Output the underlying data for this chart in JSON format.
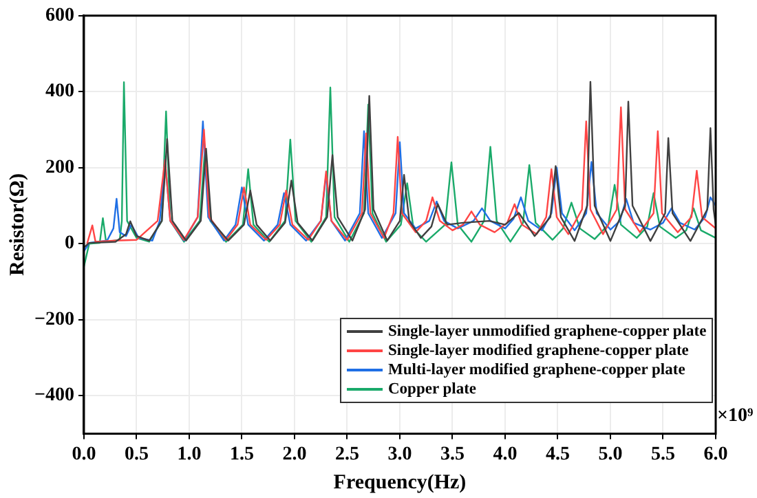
{
  "chart_data": {
    "type": "line",
    "xlabel": "Frequency(Hz)",
    "ylabel": "Resistor(Ω)",
    "annotations": [
      "×10⁹"
    ],
    "xlim": [
      0,
      6
    ],
    "xticks": [
      {
        "value": 0,
        "label": "0.0"
      },
      {
        "value": 0.5,
        "label": "0.5"
      },
      {
        "value": 1,
        "label": "1.0"
      },
      {
        "value": 1.5,
        "label": "1.5"
      },
      {
        "value": 2,
        "label": "2.0"
      },
      {
        "value": 2.5,
        "label": "2.5"
      },
      {
        "value": 3,
        "label": "3.0"
      },
      {
        "value": 3.5,
        "label": "3.5"
      },
      {
        "value": 4,
        "label": "4.0"
      },
      {
        "value": 4.5,
        "label": "4.5"
      },
      {
        "value": 5,
        "label": "5.0"
      },
      {
        "value": 5.5,
        "label": "5.5"
      },
      {
        "value": 6,
        "label": "6.0"
      }
    ],
    "ylim": [
      -500,
      600
    ],
    "yticks": [
      {
        "value": -400,
        "label": "−400"
      },
      {
        "value": -200,
        "label": "−200"
      },
      0,
      200,
      400,
      600
    ],
    "grid": true,
    "legend": "bottom right",
    "marker": "none",
    "line_style": "solid",
    "series": [
      {
        "name": "Single-layer unmodified graphene-copper plate",
        "color": "#404040",
        "x": [
          0,
          0.05,
          0.3,
          0.4,
          0.44,
          0.5,
          0.62,
          0.74,
          0.79,
          0.84,
          0.97,
          1.11,
          1.16,
          1.21,
          1.37,
          1.52,
          1.58,
          1.64,
          1.77,
          1.91,
          1.97,
          2.03,
          2.17,
          2.31,
          2.36,
          2.41,
          2.55,
          2.67,
          2.71,
          2.75,
          2.88,
          3.0,
          3.04,
          3.09,
          3.2,
          3.3,
          3.36,
          3.45,
          3.6,
          3.85,
          4.0,
          4.13,
          4.28,
          4.43,
          4.48,
          4.53,
          4.66,
          4.78,
          4.81,
          4.85,
          5.0,
          5.14,
          5.17,
          5.21,
          5.38,
          5.52,
          5.55,
          5.59,
          5.76,
          5.92,
          5.95,
          5.98,
          6.0
        ],
        "values": [
          -10,
          2,
          5,
          25,
          59,
          20,
          8,
          60,
          275,
          60,
          8,
          60,
          250,
          60,
          8,
          50,
          140,
          50,
          8,
          55,
          166,
          55,
          8,
          70,
          233,
          70,
          8,
          90,
          389,
          90,
          8,
          60,
          181,
          60,
          15,
          45,
          104,
          50,
          55,
          60,
          50,
          81,
          20,
          70,
          204,
          70,
          7,
          100,
          426,
          100,
          7,
          100,
          374,
          100,
          7,
          80,
          278,
          80,
          7,
          90,
          304,
          90,
          50
        ]
      },
      {
        "name": "Single-layer modified graphene-copper plate",
        "color": "#ff4545",
        "x": [
          0.03,
          0.08,
          0.11,
          0.3,
          0.5,
          0.7,
          0.77,
          0.82,
          0.95,
          1.08,
          1.14,
          1.19,
          1.35,
          1.46,
          1.52,
          1.58,
          1.73,
          1.86,
          1.92,
          1.98,
          2.13,
          2.25,
          2.3,
          2.35,
          2.5,
          2.64,
          2.68,
          2.72,
          2.85,
          2.94,
          2.98,
          3.02,
          3.15,
          3.25,
          3.31,
          3.38,
          3.5,
          3.6,
          3.68,
          3.76,
          3.9,
          4.02,
          4.09,
          4.16,
          4.3,
          4.39,
          4.44,
          4.49,
          4.6,
          4.73,
          4.77,
          4.81,
          4.93,
          5.06,
          5.1,
          5.14,
          5.28,
          5.41,
          5.45,
          5.49,
          5.64,
          5.77,
          5.82,
          5.87,
          6.0
        ],
        "values": [
          0,
          48,
          5,
          8,
          10,
          60,
          220,
          60,
          10,
          70,
          300,
          70,
          10,
          50,
          148,
          50,
          10,
          50,
          140,
          50,
          10,
          60,
          190,
          60,
          10,
          80,
          290,
          80,
          15,
          80,
          281,
          80,
          30,
          60,
          122,
          60,
          35,
          50,
          85,
          50,
          30,
          55,
          104,
          50,
          25,
          70,
          196,
          70,
          25,
          90,
          322,
          90,
          25,
          90,
          359,
          90,
          30,
          80,
          296,
          80,
          30,
          70,
          192,
          70,
          40
        ]
      },
      {
        "name": "Multi-layer modified graphene-copper plate",
        "color": "#1f6fe5",
        "x": [
          0,
          0.05,
          0.22,
          0.28,
          0.31,
          0.34,
          0.4,
          0.45,
          0.52,
          0.65,
          0.72,
          0.77,
          0.82,
          0.95,
          1.08,
          1.13,
          1.18,
          1.33,
          1.44,
          1.5,
          1.56,
          1.71,
          1.84,
          1.9,
          1.96,
          2.11,
          2.25,
          2.3,
          2.35,
          2.48,
          2.62,
          2.66,
          2.7,
          2.83,
          2.96,
          3.0,
          3.04,
          3.15,
          3.28,
          3.35,
          3.42,
          3.55,
          3.7,
          3.78,
          3.86,
          4.0,
          4.08,
          4.15,
          4.22,
          4.35,
          4.44,
          4.49,
          4.54,
          4.66,
          4.77,
          4.82,
          4.87,
          5.0,
          5.09,
          5.15,
          5.22,
          5.38,
          5.5,
          5.58,
          5.66,
          5.8,
          5.9,
          5.95,
          6.0
        ],
        "values": [
          -20,
          2,
          8,
          40,
          118,
          30,
          20,
          50,
          15,
          8,
          60,
          220,
          60,
          8,
          70,
          322,
          70,
          8,
          50,
          148,
          50,
          8,
          50,
          133,
          50,
          8,
          60,
          181,
          60,
          8,
          80,
          296,
          80,
          15,
          80,
          267,
          80,
          40,
          60,
          111,
          60,
          40,
          60,
          93,
          60,
          40,
          65,
          122,
          60,
          35,
          80,
          200,
          80,
          35,
          80,
          215,
          80,
          37,
          60,
          118,
          55,
          37,
          55,
          93,
          55,
          37,
          70,
          122,
          100
        ]
      },
      {
        "name": "Copper plate",
        "color": "#1aaa6a",
        "x": [
          0,
          0.05,
          0.15,
          0.18,
          0.21,
          0.34,
          0.36,
          0.38,
          0.41,
          0.5,
          0.62,
          0.74,
          0.78,
          0.82,
          0.95,
          1.1,
          1.15,
          1.2,
          1.35,
          1.51,
          1.56,
          1.61,
          1.76,
          1.91,
          1.96,
          2.01,
          2.16,
          2.3,
          2.34,
          2.38,
          2.52,
          2.66,
          2.7,
          2.74,
          2.87,
          3.01,
          3.07,
          3.13,
          3.25,
          3.43,
          3.49,
          3.55,
          3.68,
          3.8,
          3.86,
          3.92,
          4.05,
          4.17,
          4.23,
          4.29,
          4.45,
          4.55,
          4.63,
          4.71,
          4.85,
          4.98,
          5.04,
          5.1,
          5.25,
          5.35,
          5.41,
          5.47,
          5.62,
          5.72,
          5.79,
          5.86,
          6.0
        ],
        "values": [
          -60,
          0,
          2,
          67,
          5,
          10,
          60,
          425,
          60,
          15,
          5,
          60,
          348,
          60,
          5,
          60,
          252,
          60,
          5,
          50,
          196,
          50,
          5,
          60,
          274,
          60,
          5,
          70,
          411,
          70,
          5,
          80,
          366,
          80,
          5,
          50,
          159,
          40,
          5,
          50,
          214,
          50,
          5,
          60,
          255,
          60,
          5,
          55,
          207,
          55,
          10,
          40,
          108,
          40,
          12,
          50,
          155,
          50,
          15,
          45,
          133,
          45,
          15,
          35,
          93,
          35,
          15
        ]
      }
    ]
  }
}
